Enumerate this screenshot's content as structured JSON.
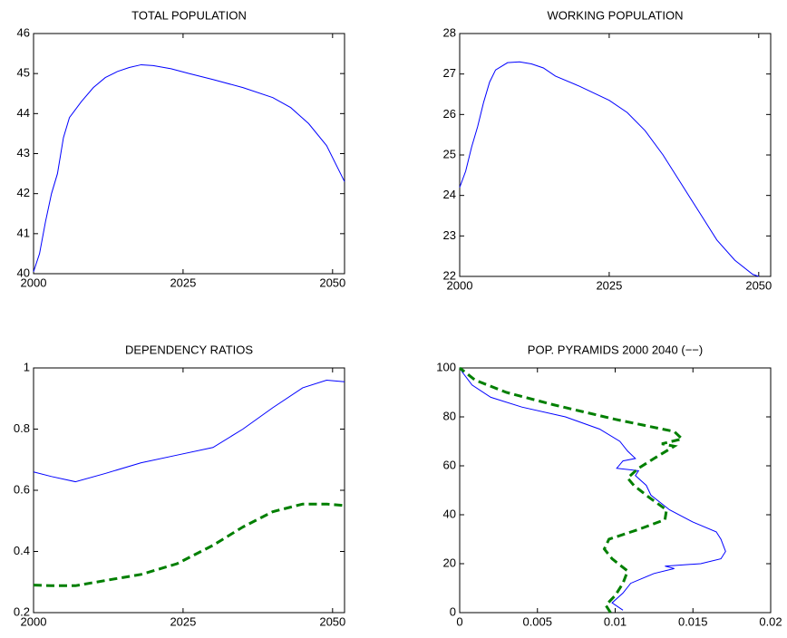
{
  "chart_data": [
    {
      "type": "line",
      "title": "TOTAL POPULATION",
      "x": [
        2000,
        2001,
        2002,
        2003,
        2004,
        2005,
        2006,
        2008,
        2010,
        2012,
        2014,
        2016,
        2018,
        2020,
        2023,
        2026,
        2030,
        2035,
        2040,
        2043,
        2046,
        2049,
        2052
      ],
      "series": [
        {
          "color": "#0000ff",
          "values": [
            40.05,
            40.5,
            41.3,
            42.0,
            42.5,
            43.4,
            43.9,
            44.3,
            44.65,
            44.9,
            45.05,
            45.15,
            45.22,
            45.2,
            45.12,
            45.0,
            44.85,
            44.65,
            44.4,
            44.15,
            43.75,
            43.2,
            42.3
          ]
        }
      ],
      "xlim": [
        2000,
        2052
      ],
      "xticks": [
        2000,
        2025,
        2050
      ],
      "ylim": [
        40,
        46
      ],
      "yticks": [
        40,
        41,
        42,
        43,
        44,
        45,
        46
      ]
    },
    {
      "type": "line",
      "title": "WORKING POPULATION",
      "x": [
        2000,
        2001,
        2002,
        2003,
        2004,
        2005,
        2006,
        2008,
        2010,
        2012,
        2014,
        2016,
        2020,
        2025,
        2028,
        2031,
        2034,
        2037,
        2040,
        2043,
        2046,
        2049,
        2050
      ],
      "series": [
        {
          "color": "#0000ff",
          "values": [
            24.2,
            24.6,
            25.2,
            25.7,
            26.3,
            26.8,
            27.1,
            27.28,
            27.3,
            27.25,
            27.15,
            26.95,
            26.7,
            26.35,
            26.05,
            25.6,
            25.0,
            24.3,
            23.6,
            22.9,
            22.4,
            22.05,
            22.0
          ]
        }
      ],
      "xlim": [
        2000,
        2052
      ],
      "xticks": [
        2000,
        2025,
        2050
      ],
      "ylim": [
        22,
        28
      ],
      "yticks": [
        22,
        23,
        24,
        25,
        26,
        27,
        28
      ]
    },
    {
      "type": "line",
      "title": "DEPENDENCY RATIOS",
      "x": [
        2000,
        2003,
        2007,
        2012,
        2018,
        2024,
        2030,
        2035,
        2040,
        2045,
        2049,
        2052
      ],
      "series": [
        {
          "color": "#0000ff",
          "values": [
            0.66,
            0.645,
            0.628,
            0.655,
            0.69,
            0.715,
            0.74,
            0.8,
            0.87,
            0.935,
            0.96,
            0.955
          ]
        },
        {
          "color": "#007f00",
          "dashed": true,
          "values": [
            0.29,
            0.288,
            0.288,
            0.305,
            0.325,
            0.36,
            0.42,
            0.48,
            0.53,
            0.555,
            0.555,
            0.55
          ]
        }
      ],
      "xlim": [
        2000,
        2052
      ],
      "xticks": [
        2000,
        2025,
        2050
      ],
      "ylim": [
        0.2,
        1
      ],
      "yticks": [
        0.2,
        0.4,
        0.6,
        0.8,
        1
      ]
    },
    {
      "type": "line",
      "title": "POP. PYRAMIDS 2000 2040 (−−)",
      "series": [
        {
          "color": "#0000ff",
          "x": [
            0.0105,
            0.0098,
            0.0105,
            0.011,
            0.0125,
            0.0138,
            0.0132,
            0.0155,
            0.0168,
            0.0171,
            0.0168,
            0.0165,
            0.015,
            0.0135,
            0.0123,
            0.012,
            0.0113,
            0.0115,
            0.0101,
            0.0105,
            0.0113,
            0.0108,
            0.0103,
            0.009,
            0.0068,
            0.004,
            0.002,
            0.0008,
            0.0002,
            0
          ],
          "values": [
            1,
            4,
            8,
            12,
            16,
            18,
            19,
            20,
            22,
            25,
            30,
            33,
            37,
            42,
            48,
            52,
            56,
            58,
            59,
            62,
            63,
            66,
            70,
            75,
            80,
            84,
            88,
            93,
            98,
            100
          ]
        },
        {
          "color": "#007f00",
          "dashed": true,
          "x": [
            0.0097,
            0.0094,
            0.01,
            0.0105,
            0.0108,
            0.0098,
            0.0093,
            0.0096,
            0.0115,
            0.0132,
            0.0133,
            0.0122,
            0.0112,
            0.0108,
            0.0115,
            0.0125,
            0.0138,
            0.013,
            0.0143,
            0.0138,
            0.01,
            0.006,
            0.003,
            0.001,
            0
          ],
          "values": [
            0,
            3,
            7,
            12,
            17,
            22,
            26,
            30,
            34,
            38,
            42,
            47,
            52,
            55,
            59,
            63,
            68,
            69,
            71,
            74,
            79,
            85,
            90,
            95,
            100
          ]
        }
      ],
      "xlim": [
        0,
        0.02
      ],
      "xticks": [
        0,
        0.005,
        0.01,
        0.015,
        0.02
      ],
      "ylim": [
        0,
        100
      ],
      "yticks": [
        0,
        20,
        40,
        60,
        80,
        100
      ]
    }
  ]
}
